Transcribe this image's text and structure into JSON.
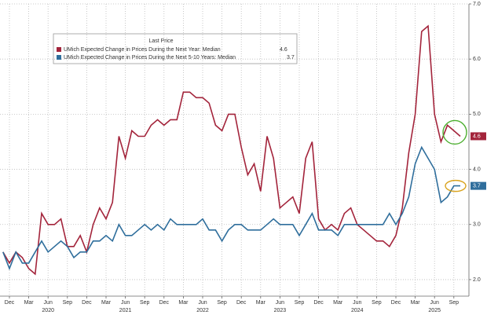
{
  "chart_data": {
    "type": "line",
    "legend_title": "Last Price",
    "categories": [
      null,
      "Dec",
      null,
      null,
      "Mar",
      null,
      null,
      "Jun",
      null,
      null,
      "Sep",
      null,
      null,
      "Dec",
      null,
      null,
      "Mar",
      null,
      null,
      "Jun",
      null,
      null,
      "Sep",
      null,
      null,
      "Dec",
      null,
      null,
      "Mar",
      null,
      null,
      "Jun",
      null,
      null,
      "Sep",
      null,
      null,
      "Dec",
      null,
      null,
      "Mar",
      null,
      null,
      "Jun",
      null,
      null,
      "Sep",
      null,
      null,
      "Dec",
      null,
      null,
      "Mar",
      null,
      null,
      "Jun",
      null,
      null,
      "Sep",
      null,
      null,
      "Dec",
      null,
      null,
      "Mar",
      null,
      null,
      "Jun",
      null,
      null,
      "Sep",
      null
    ],
    "year_labels": [
      "2020",
      "2021",
      "2022",
      "2023",
      "2024",
      "2025"
    ],
    "series": [
      {
        "name": "UMich Expected Change in Prices During the Next Year: Median",
        "color": "#a3243b",
        "values": [
          2.5,
          2.3,
          2.5,
          2.4,
          2.2,
          2.1,
          3.2,
          3.0,
          3.0,
          3.1,
          2.6,
          2.6,
          2.8,
          2.5,
          3.0,
          3.3,
          3.1,
          3.4,
          4.6,
          4.2,
          4.7,
          4.6,
          4.6,
          4.8,
          4.9,
          4.8,
          4.9,
          4.9,
          5.4,
          5.4,
          5.3,
          5.3,
          5.2,
          4.8,
          4.7,
          5.0,
          5.0,
          4.4,
          3.9,
          4.1,
          3.6,
          4.6,
          4.2,
          3.3,
          3.4,
          3.5,
          3.2,
          4.2,
          4.5,
          3.1,
          2.9,
          3.0,
          2.9,
          3.2,
          3.3,
          3.0,
          2.9,
          2.8,
          2.7,
          2.7,
          2.6,
          2.8,
          3.3,
          4.3,
          5.0,
          6.5,
          6.6,
          5.0,
          4.5,
          4.8,
          4.7,
          4.6
        ]
      },
      {
        "name": "UMich Expected Change in Prices During the Next 5-10 Years: Median",
        "color": "#2f6e9c",
        "values": [
          2.5,
          2.2,
          2.5,
          2.3,
          2.3,
          2.5,
          2.7,
          2.5,
          2.6,
          2.7,
          2.6,
          2.4,
          2.5,
          2.5,
          2.7,
          2.7,
          2.8,
          2.7,
          3.0,
          2.8,
          2.8,
          2.9,
          3.0,
          2.9,
          3.0,
          2.9,
          3.1,
          3.0,
          3.0,
          3.0,
          3.0,
          3.1,
          2.9,
          2.9,
          2.7,
          2.9,
          3.0,
          3.0,
          2.9,
          2.9,
          2.9,
          3.0,
          3.1,
          3.0,
          3.0,
          3.0,
          2.8,
          3.0,
          3.2,
          2.9,
          2.9,
          2.9,
          2.8,
          3.0,
          3.0,
          3.0,
          3.0,
          3.0,
          3.0,
          3.0,
          3.2,
          3.0,
          3.2,
          3.5,
          4.1,
          4.4,
          4.2,
          4.0,
          3.4,
          3.5,
          3.7,
          3.7
        ]
      }
    ],
    "ylim": [
      1.7,
      7.0
    ],
    "yticks": [
      {
        "value": 2,
        "label": "2.0"
      },
      {
        "value": 3,
        "label": "3.0"
      },
      {
        "value": 4,
        "label": "4.0"
      },
      {
        "value": 5,
        "label": "5.0"
      },
      {
        "value": 6,
        "label": "6.0"
      },
      {
        "value": 7,
        "label": "7.0"
      }
    ],
    "grid": true
  }
}
